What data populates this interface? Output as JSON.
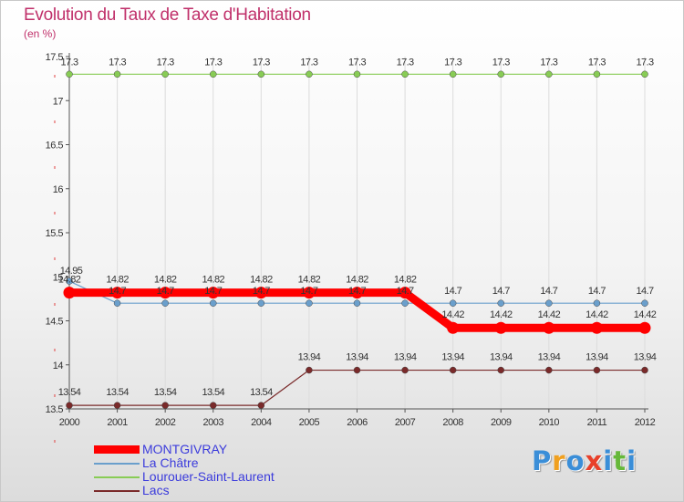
{
  "chart_data": {
    "type": "line",
    "title": "Evolution du Taux de Taxe d'Habitation",
    "ylabel": "(en %)",
    "xlabel": "",
    "categories": [
      "2000",
      "2001",
      "2002",
      "2003",
      "2004",
      "2005",
      "2006",
      "2007",
      "2008",
      "2009",
      "2010",
      "2011",
      "2012"
    ],
    "ylim": [
      13.5,
      17.5
    ],
    "yticks": [
      13.5,
      14,
      14.5,
      15,
      15.5,
      16,
      16.5,
      17,
      17.5
    ],
    "ytick_labels": [
      "13.5",
      "14",
      "14.5",
      "15",
      "15.5",
      "16",
      "16.5",
      "17",
      "17.5"
    ],
    "series": [
      {
        "name": "MONTGIVRAY",
        "color": "#ff0000",
        "bold": true,
        "values": [
          14.82,
          14.82,
          14.82,
          14.82,
          14.82,
          14.82,
          14.82,
          14.82,
          14.42,
          14.42,
          14.42,
          14.42,
          14.42
        ]
      },
      {
        "name": "La Châtre",
        "color": "#6a9fcc",
        "bold": false,
        "values": [
          14.95,
          14.7,
          14.7,
          14.7,
          14.7,
          14.7,
          14.7,
          14.7,
          14.7,
          14.7,
          14.7,
          14.7,
          14.7
        ]
      },
      {
        "name": "Lourouer-Saint-Laurent",
        "color": "#88cc55",
        "bold": false,
        "values": [
          17.3,
          17.3,
          17.3,
          17.3,
          17.3,
          17.3,
          17.3,
          17.3,
          17.3,
          17.3,
          17.3,
          17.3,
          17.3
        ]
      },
      {
        "name": "Lacs",
        "color": "#7a2a2a",
        "bold": false,
        "values": [
          13.54,
          13.54,
          13.54,
          13.54,
          13.54,
          13.94,
          13.94,
          13.94,
          13.94,
          13.94,
          13.94,
          13.94,
          13.94
        ]
      }
    ],
    "value_labels": [
      {
        "series": 0,
        "index": 0,
        "text": "14.82"
      },
      {
        "series": 0,
        "index": 1,
        "text": "14.82"
      },
      {
        "series": 0,
        "index": 2,
        "text": "14.82"
      },
      {
        "series": 0,
        "index": 3,
        "text": "14.82"
      },
      {
        "series": 0,
        "index": 4,
        "text": "14.82"
      },
      {
        "series": 0,
        "index": 5,
        "text": "14.82"
      },
      {
        "series": 0,
        "index": 6,
        "text": "14.82"
      },
      {
        "series": 0,
        "index": 7,
        "text": "14.82"
      },
      {
        "series": 0,
        "index": 8,
        "text": "14.42"
      },
      {
        "series": 0,
        "index": 9,
        "text": "14.42"
      },
      {
        "series": 0,
        "index": 10,
        "text": "14.42"
      },
      {
        "series": 0,
        "index": 11,
        "text": "14.42"
      },
      {
        "series": 0,
        "index": 12,
        "text": "14.42"
      },
      {
        "series": 1,
        "index": 0,
        "text": "14.95"
      },
      {
        "series": 1,
        "index": 1,
        "text": "14.7"
      },
      {
        "series": 1,
        "index": 2,
        "text": "14.7"
      },
      {
        "series": 1,
        "index": 3,
        "text": "14.7"
      },
      {
        "series": 1,
        "index": 4,
        "text": "14.7"
      },
      {
        "series": 1,
        "index": 5,
        "text": "14.7"
      },
      {
        "series": 1,
        "index": 6,
        "text": "14.7"
      },
      {
        "series": 1,
        "index": 7,
        "text": "14.7"
      },
      {
        "series": 1,
        "index": 8,
        "text": "14.7"
      },
      {
        "series": 1,
        "index": 9,
        "text": "14.7"
      },
      {
        "series": 1,
        "index": 10,
        "text": "14.7"
      },
      {
        "series": 1,
        "index": 11,
        "text": "14.7"
      },
      {
        "series": 1,
        "index": 12,
        "text": "14.7"
      },
      {
        "series": 2,
        "index": 0,
        "text": "17.3"
      },
      {
        "series": 2,
        "index": 1,
        "text": "17.3"
      },
      {
        "series": 2,
        "index": 2,
        "text": "17.3"
      },
      {
        "series": 2,
        "index": 3,
        "text": "17.3"
      },
      {
        "series": 2,
        "index": 4,
        "text": "17.3"
      },
      {
        "series": 2,
        "index": 5,
        "text": "17.3"
      },
      {
        "series": 2,
        "index": 6,
        "text": "17.3"
      },
      {
        "series": 2,
        "index": 7,
        "text": "17.3"
      },
      {
        "series": 2,
        "index": 8,
        "text": "17.3"
      },
      {
        "series": 2,
        "index": 9,
        "text": "17.3"
      },
      {
        "series": 2,
        "index": 10,
        "text": "17.3"
      },
      {
        "series": 2,
        "index": 11,
        "text": "17.3"
      },
      {
        "series": 2,
        "index": 12,
        "text": "17.3"
      },
      {
        "series": 3,
        "index": 0,
        "text": "13.54"
      },
      {
        "series": 3,
        "index": 1,
        "text": "13.54"
      },
      {
        "series": 3,
        "index": 2,
        "text": "13.54"
      },
      {
        "series": 3,
        "index": 3,
        "text": "13.54"
      },
      {
        "series": 3,
        "index": 4,
        "text": "13.54"
      },
      {
        "series": 3,
        "index": 5,
        "text": "13.94"
      },
      {
        "series": 3,
        "index": 6,
        "text": "13.94"
      },
      {
        "series": 3,
        "index": 7,
        "text": "13.94"
      },
      {
        "series": 3,
        "index": 8,
        "text": "13.94"
      },
      {
        "series": 3,
        "index": 9,
        "text": "13.94"
      },
      {
        "series": 3,
        "index": 10,
        "text": "13.94"
      },
      {
        "series": 3,
        "index": 11,
        "text": "13.94"
      },
      {
        "series": 3,
        "index": 12,
        "text": "13.94"
      }
    ]
  },
  "legend": [
    {
      "label": "MONTGIVRAY",
      "color": "#ff0000"
    },
    {
      "label": "La Châtre",
      "color": "#6a9fcc"
    },
    {
      "label": "Lourouer-Saint-Laurent",
      "color": "#88cc55"
    },
    {
      "label": "Lacs",
      "color": "#7a2a2a"
    }
  ],
  "brand": {
    "letters": [
      "P",
      "r",
      "o",
      "x",
      "i",
      "t",
      "i"
    ],
    "colors": [
      "#3a8ed8",
      "#f0a020",
      "#3a8ed8",
      "#e8402a",
      "#3a8ed8",
      "#66b83a",
      "#3a8ed8"
    ]
  },
  "colors": {
    "title": "#c0306a",
    "axis": "#555555",
    "grid": "#dcdcdc",
    "label_text": "#333333"
  }
}
